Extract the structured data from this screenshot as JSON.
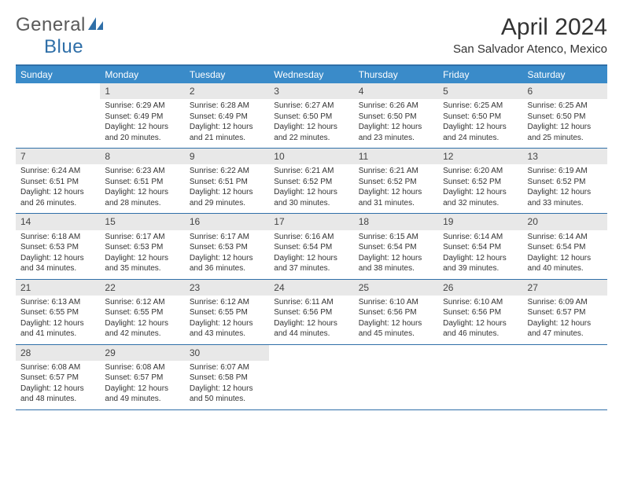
{
  "brand": {
    "text1": "General",
    "text2": "Blue"
  },
  "title": "April 2024",
  "subtitle": "San Salvador Atenco, Mexico",
  "colors": {
    "header_bg": "#3a8bc9",
    "border": "#2f6fa8",
    "date_bg": "#e8e8e8",
    "text": "#333333",
    "brand_gray": "#5a5a5a",
    "brand_blue": "#2f6fa8"
  },
  "layout": {
    "columns": 7,
    "rows": 5,
    "first_weekday": "Sunday"
  },
  "font": {
    "cell_size": 10,
    "dayname_size": 12,
    "title_size": 30,
    "subtitle_size": 15
  },
  "daynames": [
    "Sunday",
    "Monday",
    "Tuesday",
    "Wednesday",
    "Thursday",
    "Friday",
    "Saturday"
  ],
  "weeks": [
    [
      {
        "date": "",
        "lines": []
      },
      {
        "date": "1",
        "lines": [
          "Sunrise: 6:29 AM",
          "Sunset: 6:49 PM",
          "Daylight: 12 hours and 20 minutes."
        ]
      },
      {
        "date": "2",
        "lines": [
          "Sunrise: 6:28 AM",
          "Sunset: 6:49 PM",
          "Daylight: 12 hours and 21 minutes."
        ]
      },
      {
        "date": "3",
        "lines": [
          "Sunrise: 6:27 AM",
          "Sunset: 6:50 PM",
          "Daylight: 12 hours and 22 minutes."
        ]
      },
      {
        "date": "4",
        "lines": [
          "Sunrise: 6:26 AM",
          "Sunset: 6:50 PM",
          "Daylight: 12 hours and 23 minutes."
        ]
      },
      {
        "date": "5",
        "lines": [
          "Sunrise: 6:25 AM",
          "Sunset: 6:50 PM",
          "Daylight: 12 hours and 24 minutes."
        ]
      },
      {
        "date": "6",
        "lines": [
          "Sunrise: 6:25 AM",
          "Sunset: 6:50 PM",
          "Daylight: 12 hours and 25 minutes."
        ]
      }
    ],
    [
      {
        "date": "7",
        "lines": [
          "Sunrise: 6:24 AM",
          "Sunset: 6:51 PM",
          "Daylight: 12 hours and 26 minutes."
        ]
      },
      {
        "date": "8",
        "lines": [
          "Sunrise: 6:23 AM",
          "Sunset: 6:51 PM",
          "Daylight: 12 hours and 28 minutes."
        ]
      },
      {
        "date": "9",
        "lines": [
          "Sunrise: 6:22 AM",
          "Sunset: 6:51 PM",
          "Daylight: 12 hours and 29 minutes."
        ]
      },
      {
        "date": "10",
        "lines": [
          "Sunrise: 6:21 AM",
          "Sunset: 6:52 PM",
          "Daylight: 12 hours and 30 minutes."
        ]
      },
      {
        "date": "11",
        "lines": [
          "Sunrise: 6:21 AM",
          "Sunset: 6:52 PM",
          "Daylight: 12 hours and 31 minutes."
        ]
      },
      {
        "date": "12",
        "lines": [
          "Sunrise: 6:20 AM",
          "Sunset: 6:52 PM",
          "Daylight: 12 hours and 32 minutes."
        ]
      },
      {
        "date": "13",
        "lines": [
          "Sunrise: 6:19 AM",
          "Sunset: 6:52 PM",
          "Daylight: 12 hours and 33 minutes."
        ]
      }
    ],
    [
      {
        "date": "14",
        "lines": [
          "Sunrise: 6:18 AM",
          "Sunset: 6:53 PM",
          "Daylight: 12 hours and 34 minutes."
        ]
      },
      {
        "date": "15",
        "lines": [
          "Sunrise: 6:17 AM",
          "Sunset: 6:53 PM",
          "Daylight: 12 hours and 35 minutes."
        ]
      },
      {
        "date": "16",
        "lines": [
          "Sunrise: 6:17 AM",
          "Sunset: 6:53 PM",
          "Daylight: 12 hours and 36 minutes."
        ]
      },
      {
        "date": "17",
        "lines": [
          "Sunrise: 6:16 AM",
          "Sunset: 6:54 PM",
          "Daylight: 12 hours and 37 minutes."
        ]
      },
      {
        "date": "18",
        "lines": [
          "Sunrise: 6:15 AM",
          "Sunset: 6:54 PM",
          "Daylight: 12 hours and 38 minutes."
        ]
      },
      {
        "date": "19",
        "lines": [
          "Sunrise: 6:14 AM",
          "Sunset: 6:54 PM",
          "Daylight: 12 hours and 39 minutes."
        ]
      },
      {
        "date": "20",
        "lines": [
          "Sunrise: 6:14 AM",
          "Sunset: 6:54 PM",
          "Daylight: 12 hours and 40 minutes."
        ]
      }
    ],
    [
      {
        "date": "21",
        "lines": [
          "Sunrise: 6:13 AM",
          "Sunset: 6:55 PM",
          "Daylight: 12 hours and 41 minutes."
        ]
      },
      {
        "date": "22",
        "lines": [
          "Sunrise: 6:12 AM",
          "Sunset: 6:55 PM",
          "Daylight: 12 hours and 42 minutes."
        ]
      },
      {
        "date": "23",
        "lines": [
          "Sunrise: 6:12 AM",
          "Sunset: 6:55 PM",
          "Daylight: 12 hours and 43 minutes."
        ]
      },
      {
        "date": "24",
        "lines": [
          "Sunrise: 6:11 AM",
          "Sunset: 6:56 PM",
          "Daylight: 12 hours and 44 minutes."
        ]
      },
      {
        "date": "25",
        "lines": [
          "Sunrise: 6:10 AM",
          "Sunset: 6:56 PM",
          "Daylight: 12 hours and 45 minutes."
        ]
      },
      {
        "date": "26",
        "lines": [
          "Sunrise: 6:10 AM",
          "Sunset: 6:56 PM",
          "Daylight: 12 hours and 46 minutes."
        ]
      },
      {
        "date": "27",
        "lines": [
          "Sunrise: 6:09 AM",
          "Sunset: 6:57 PM",
          "Daylight: 12 hours and 47 minutes."
        ]
      }
    ],
    [
      {
        "date": "28",
        "lines": [
          "Sunrise: 6:08 AM",
          "Sunset: 6:57 PM",
          "Daylight: 12 hours and 48 minutes."
        ]
      },
      {
        "date": "29",
        "lines": [
          "Sunrise: 6:08 AM",
          "Sunset: 6:57 PM",
          "Daylight: 12 hours and 49 minutes."
        ]
      },
      {
        "date": "30",
        "lines": [
          "Sunrise: 6:07 AM",
          "Sunset: 6:58 PM",
          "Daylight: 12 hours and 50 minutes."
        ]
      },
      {
        "date": "",
        "lines": []
      },
      {
        "date": "",
        "lines": []
      },
      {
        "date": "",
        "lines": []
      },
      {
        "date": "",
        "lines": []
      }
    ]
  ]
}
